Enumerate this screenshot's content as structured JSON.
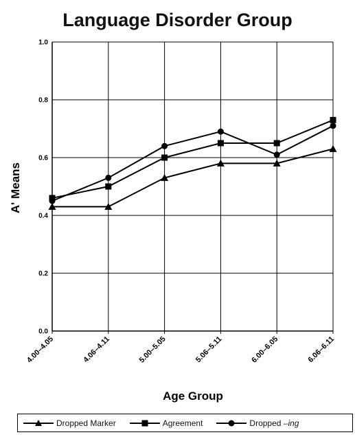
{
  "chart_data": {
    "type": "line",
    "title": "Language Disorder Group",
    "xlabel": "Age Group",
    "ylabel": "A' Means",
    "categories": [
      "4.00–4.05",
      "4.06–4.11",
      "5.00–5.05",
      "5.06–5.11",
      "6.00–6.05",
      "6.06–6.11"
    ],
    "ylim": [
      0.0,
      1.0
    ],
    "yticks": [
      "0.0",
      "0.2",
      "0.4",
      "0.6",
      "0.8",
      "1.0"
    ],
    "grid": "horizontal",
    "legend_position": "bottom",
    "series": [
      {
        "name": "Dropped Marker",
        "marker": "triangle",
        "values": [
          0.43,
          0.43,
          0.53,
          0.58,
          0.58,
          0.63
        ]
      },
      {
        "name": "Agreement",
        "marker": "square",
        "values": [
          0.46,
          0.5,
          0.6,
          0.65,
          0.65,
          0.73
        ]
      },
      {
        "name": "Dropped –ing",
        "name_prefix": "Dropped ",
        "name_italic": "–ing",
        "marker": "circle",
        "values": [
          0.45,
          0.53,
          0.64,
          0.69,
          0.61,
          0.71
        ]
      }
    ]
  }
}
